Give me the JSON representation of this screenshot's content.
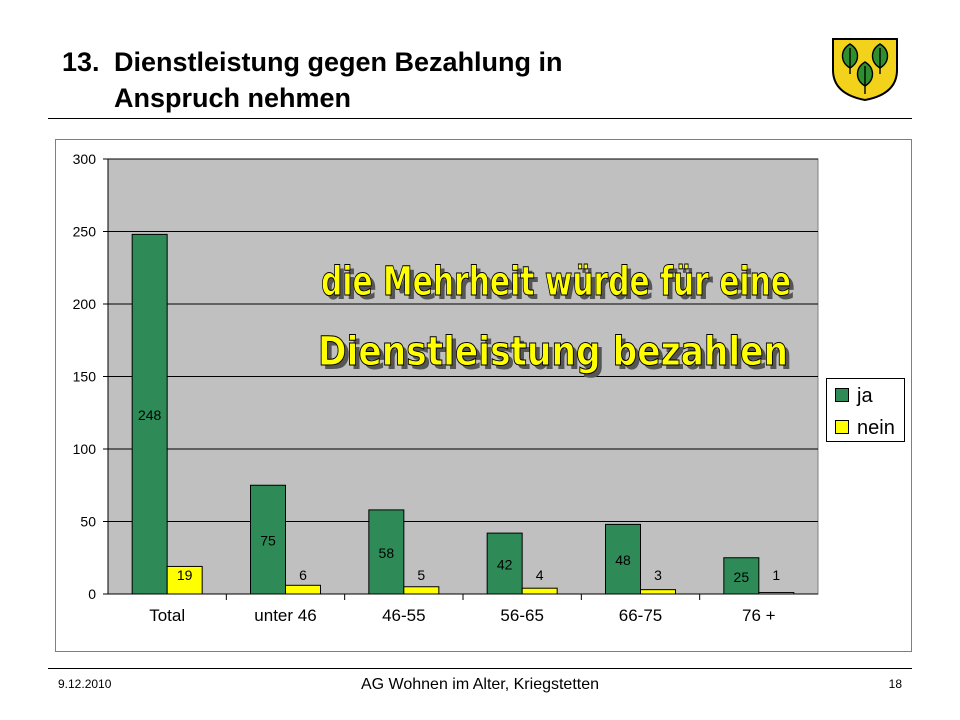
{
  "slide": {
    "title_number": "13.",
    "title_line1": "Dienstleistung gegen Bezahlung in",
    "title_line2": "Anspruch nehmen",
    "footer_date": "9.12.2010",
    "footer_center": "AG Wohnen im Alter, Kriegstetten",
    "page_number": "18",
    "crest_icon": "coat-of-arms-three-leaves-icon"
  },
  "chart_data": {
    "type": "bar",
    "categories": [
      "Total",
      "unter 46",
      "46-55",
      "56-65",
      "66-75",
      "76 +"
    ],
    "series": [
      {
        "name": "ja",
        "values": [
          248,
          75,
          58,
          42,
          48,
          25
        ],
        "color": "#2e8b57"
      },
      {
        "name": "nein",
        "values": [
          19,
          6,
          5,
          4,
          3,
          1
        ],
        "color": "#ffff00"
      }
    ],
    "data_labels": [
      [
        "248",
        "75",
        "58",
        "42",
        "48",
        "25"
      ],
      [
        "19",
        "6",
        "5",
        "4",
        "3",
        "1"
      ]
    ],
    "ylim": [
      0,
      300
    ],
    "yticks": [
      "0",
      "50",
      "100",
      "150",
      "200",
      "250",
      "300"
    ],
    "grid": true,
    "plot_background": "#c0c0c0",
    "legend_position": "right",
    "annotation_line1": "die Mehrheit würde für eine",
    "annotation_line2": "Dienstleistung bezahlen",
    "annotation_color": "#ffff00"
  }
}
